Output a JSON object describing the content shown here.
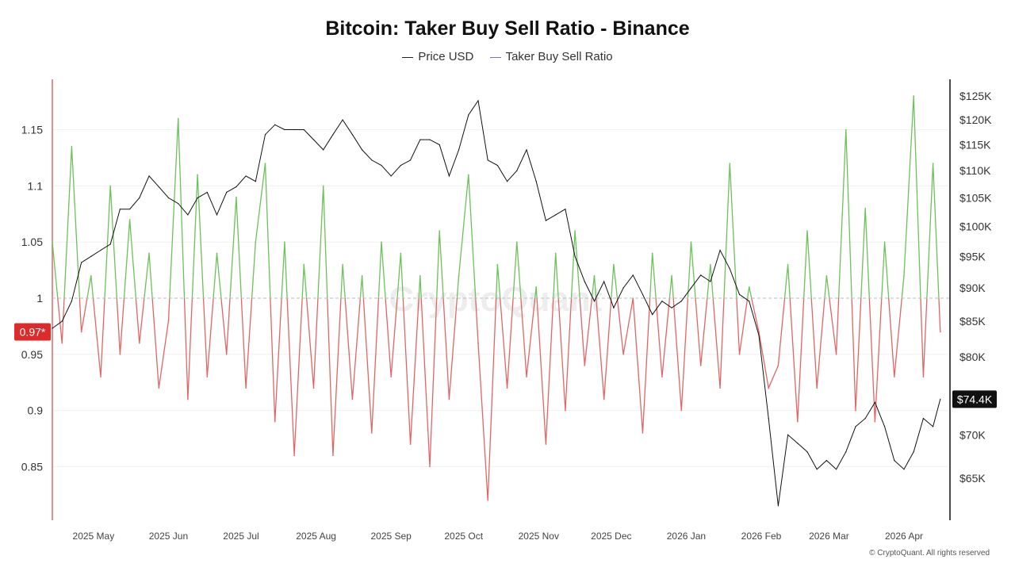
{
  "chart_data": {
    "type": "line",
    "title": "Bitcoin: Taker Buy Sell Ratio - Binance",
    "legend": [
      "Price USD",
      "Taker Buy Sell Ratio"
    ],
    "legend_placement": "top",
    "left_axis": {
      "ticks": [
        "0.85",
        "0.9",
        "0.95",
        "1",
        "1.05",
        "1.1",
        "1.15"
      ],
      "values": [
        0.85,
        0.9,
        0.95,
        1,
        1.05,
        1.1,
        1.15
      ],
      "range": [
        0.81,
        1.2
      ]
    },
    "right_axis": {
      "scale": "log",
      "ticks": [
        "$65K",
        "$70K",
        "$75K",
        "$80K",
        "$85K",
        "$90K",
        "$95K",
        "$100K",
        "$105K",
        "$110K",
        "$115K",
        "$120K",
        "$125K"
      ],
      "values": [
        65,
        70,
        75,
        80,
        85,
        90,
        95,
        100,
        105,
        110,
        115,
        120,
        125
      ],
      "unit": "K USD"
    },
    "x_ticks": [
      "2025 May",
      "2025 Jun",
      "2025 Jul",
      "2025 Aug",
      "2025 Sep",
      "2025 Oct",
      "2025 Nov",
      "2025 Dec",
      "2026 Jan",
      "2026 Feb",
      "2026 Mar",
      "2026 Apr"
    ],
    "x_tick_dates": [
      "2025-05-01",
      "2025-06-01",
      "2025-07-01",
      "2025-08-01",
      "2025-09-01",
      "2025-10-01",
      "2025-11-01",
      "2025-12-01",
      "2026-01-01",
      "2026-02-01",
      "2026-03-01",
      "2026-04-01"
    ],
    "x_range": [
      "2025-04-14",
      "2026-04-20"
    ],
    "dates": [
      "2025-04-14",
      "2025-04-18",
      "2025-04-22",
      "2025-04-26",
      "2025-04-30",
      "2025-05-04",
      "2025-05-08",
      "2025-05-12",
      "2025-05-16",
      "2025-05-20",
      "2025-05-24",
      "2025-05-28",
      "2025-06-01",
      "2025-06-05",
      "2025-06-09",
      "2025-06-13",
      "2025-06-17",
      "2025-06-21",
      "2025-06-25",
      "2025-06-29",
      "2025-07-03",
      "2025-07-07",
      "2025-07-11",
      "2025-07-15",
      "2025-07-19",
      "2025-07-23",
      "2025-07-27",
      "2025-07-31",
      "2025-08-04",
      "2025-08-08",
      "2025-08-12",
      "2025-08-16",
      "2025-08-20",
      "2025-08-24",
      "2025-08-28",
      "2025-09-01",
      "2025-09-05",
      "2025-09-09",
      "2025-09-13",
      "2025-09-17",
      "2025-09-21",
      "2025-09-25",
      "2025-09-29",
      "2025-10-03",
      "2025-10-07",
      "2025-10-11",
      "2025-10-15",
      "2025-10-19",
      "2025-10-23",
      "2025-10-27",
      "2025-10-31",
      "2025-11-04",
      "2025-11-08",
      "2025-11-12",
      "2025-11-16",
      "2025-11-20",
      "2025-11-24",
      "2025-11-28",
      "2025-12-02",
      "2025-12-06",
      "2025-12-10",
      "2025-12-14",
      "2025-12-18",
      "2025-12-22",
      "2025-12-26",
      "2025-12-30",
      "2026-01-03",
      "2026-01-07",
      "2026-01-11",
      "2026-01-15",
      "2026-01-19",
      "2026-01-23",
      "2026-01-27",
      "2026-01-31",
      "2026-02-04",
      "2026-02-08",
      "2026-02-12",
      "2026-02-16",
      "2026-02-20",
      "2026-02-24",
      "2026-02-28",
      "2026-03-04",
      "2026-03-08",
      "2026-03-12",
      "2026-03-16",
      "2026-03-20",
      "2026-03-24",
      "2026-03-28",
      "2026-04-01",
      "2026-04-05",
      "2026-04-09",
      "2026-04-13",
      "2026-04-16"
    ],
    "series": [
      {
        "name": "Price USD",
        "axis": "right",
        "color": "#111111",
        "values": [
          84,
          85,
          88,
          94,
          95,
          96,
          97,
          103,
          103,
          105,
          109,
          107,
          105,
          104,
          102,
          105,
          106,
          102,
          106,
          107,
          109,
          108,
          117,
          119,
          118,
          118,
          118,
          116,
          114,
          117,
          120,
          117,
          114,
          112,
          111,
          109,
          111,
          112,
          116,
          116,
          115,
          109,
          114,
          121,
          124,
          112,
          111,
          108,
          110,
          114,
          108,
          101,
          102,
          103,
          95,
          91,
          88,
          91,
          87,
          90,
          92,
          89,
          86,
          88,
          87,
          88,
          90,
          92,
          91,
          96,
          93,
          89,
          88,
          83,
          72,
          62,
          70,
          69,
          68,
          66,
          67,
          66,
          68,
          71,
          72,
          74,
          71,
          67,
          66,
          68,
          72,
          71,
          74.4
        ]
      },
      {
        "name": "Taker Buy Sell Ratio",
        "axis": "left",
        "positive_color": "#6cc15a",
        "negative_color": "#e06666",
        "values": [
          1.05,
          0.96,
          1.135,
          0.97,
          1.02,
          0.93,
          1.1,
          0.95,
          1.07,
          0.96,
          1.04,
          0.92,
          0.98,
          1.16,
          0.91,
          1.11,
          0.93,
          1.04,
          0.95,
          1.09,
          0.92,
          1.05,
          1.12,
          0.89,
          1.05,
          0.86,
          1.03,
          0.92,
          1.1,
          0.86,
          1.03,
          0.91,
          1.02,
          0.88,
          1.05,
          0.93,
          1.04,
          0.87,
          1.02,
          0.85,
          1.06,
          0.91,
          1.02,
          1.11,
          0.96,
          0.82,
          1.03,
          0.92,
          1.05,
          0.93,
          1.01,
          0.87,
          1.04,
          0.9,
          1.06,
          0.94,
          1.02,
          0.91,
          1.03,
          0.95,
          1.0,
          0.88,
          1.04,
          0.93,
          1.02,
          0.9,
          1.05,
          0.94,
          1.03,
          0.92,
          1.12,
          0.95,
          1.01,
          0.97,
          0.92,
          0.94,
          1.03,
          0.89,
          1.06,
          0.92,
          1.02,
          0.95,
          1.15,
          0.9,
          1.08,
          0.89,
          1.05,
          0.93,
          1.02,
          1.18,
          0.93,
          1.12,
          0.97
        ]
      }
    ],
    "last_price_label": "$74.4K",
    "last_ratio_label": "0.97*",
    "reference_line": 1,
    "grid": true
  },
  "watermark": "CryptoQuant",
  "copyright": "© CryptoQuant. All rights reserved"
}
